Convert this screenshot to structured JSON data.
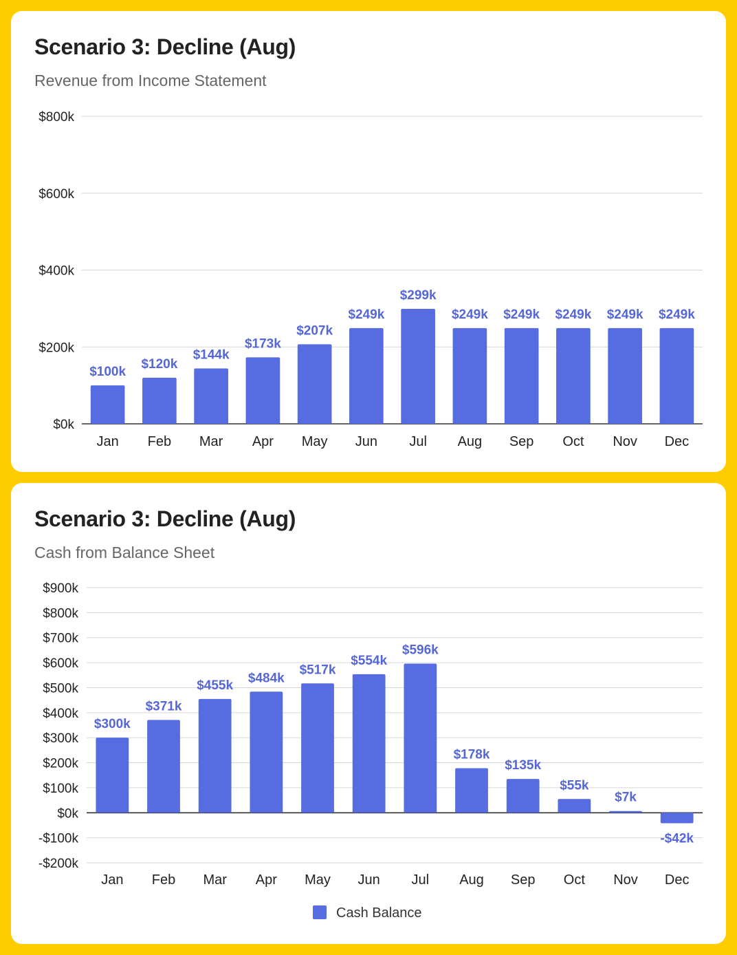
{
  "colors": {
    "background": "#FFCC00",
    "card": "#FFFFFF",
    "bar": "#566CE0",
    "label": "#5566D6"
  },
  "chart_data": [
    {
      "type": "bar",
      "title": "Scenario 3: Decline (Aug)",
      "subtitle": "Revenue from Income Statement",
      "categories": [
        "Jan",
        "Feb",
        "Mar",
        "Apr",
        "May",
        "Jun",
        "Jul",
        "Aug",
        "Sep",
        "Oct",
        "Nov",
        "Dec"
      ],
      "series": [
        {
          "values": [
            100,
            120,
            144,
            173,
            207,
            249,
            299,
            249,
            249,
            249,
            249,
            249
          ]
        }
      ],
      "value_labels": [
        "$100k",
        "$120k",
        "$144k",
        "$173k",
        "$207k",
        "$249k",
        "$299k",
        "$249k",
        "$249k",
        "$249k",
        "$249k",
        "$249k"
      ],
      "unit": "thousand USD",
      "ylim": [
        0,
        800
      ],
      "yticks": [
        0,
        200,
        400,
        600,
        800
      ],
      "ytick_labels": [
        "$0k",
        "$200k",
        "$400k",
        "$600k",
        "$800k"
      ],
      "grid": true,
      "legend": "none"
    },
    {
      "type": "bar",
      "title": "Scenario 3: Decline (Aug)",
      "subtitle": "Cash from Balance Sheet",
      "categories": [
        "Jan",
        "Feb",
        "Mar",
        "Apr",
        "May",
        "Jun",
        "Jul",
        "Aug",
        "Sep",
        "Oct",
        "Nov",
        "Dec"
      ],
      "series": [
        {
          "name": "Cash Balance",
          "values": [
            300,
            371,
            455,
            484,
            517,
            554,
            596,
            178,
            135,
            55,
            7,
            -42
          ]
        }
      ],
      "value_labels": [
        "$300k",
        "$371k",
        "$455k",
        "$484k",
        "$517k",
        "$554k",
        "$596k",
        "$178k",
        "$135k",
        "$55k",
        "$7k",
        "-$42k"
      ],
      "unit": "thousand USD",
      "ylim": [
        -200,
        900
      ],
      "yticks": [
        -200,
        -100,
        0,
        100,
        200,
        300,
        400,
        500,
        600,
        700,
        800,
        900
      ],
      "ytick_labels": [
        "-$200k",
        "-$100k",
        "$0k",
        "$100k",
        "$200k",
        "$300k",
        "$400k",
        "$500k",
        "$600k",
        "$700k",
        "$800k",
        "$900k"
      ],
      "grid": true,
      "legend": "bottom"
    }
  ]
}
